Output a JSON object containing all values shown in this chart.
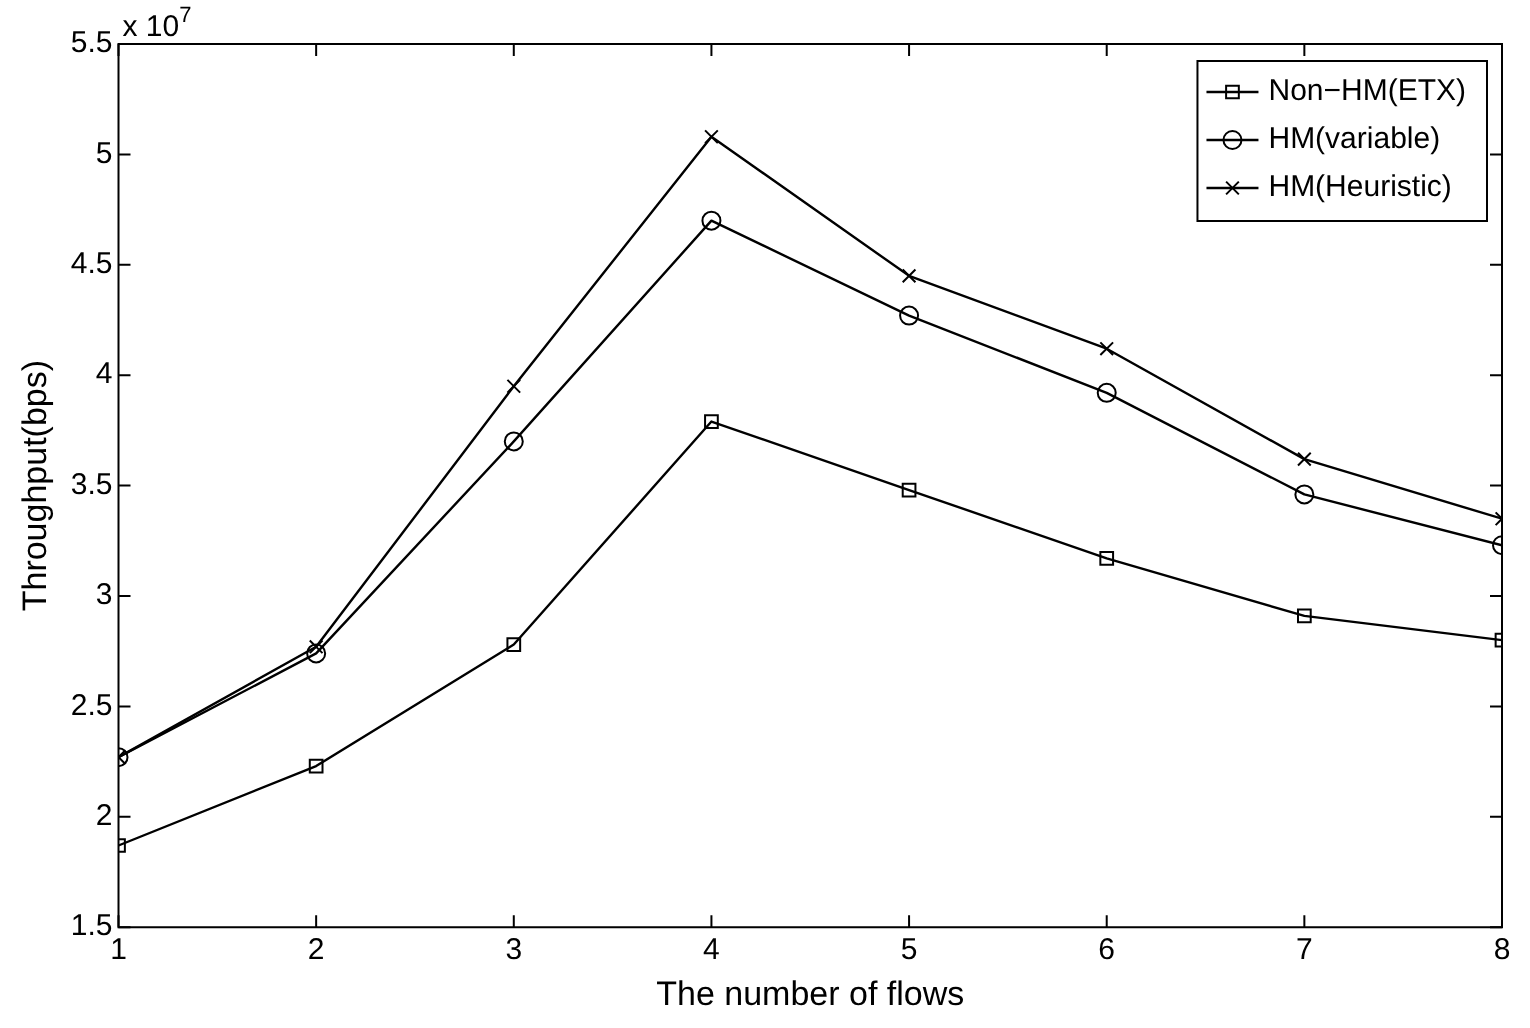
{
  "chart_data": {
    "type": "line",
    "xlabel": "The number of flows",
    "ylabel": "Throughput(bps)",
    "annotations": [
      "x 10$^{7}$"
    ],
    "x": [
      1,
      2,
      3,
      4,
      5,
      6,
      7,
      8
    ],
    "series": [
      {
        "name": "Non−HM(ETX)",
        "color": "#000000",
        "marker": "square",
        "values": [
          1.87,
          2.23,
          2.78,
          3.79,
          3.48,
          3.17,
          2.91,
          2.8
        ]
      },
      {
        "name": "HM(variable)",
        "color": "#000000",
        "marker": "circle",
        "values": [
          2.27,
          2.74,
          3.7,
          4.7,
          4.27,
          3.92,
          3.46,
          3.23
        ]
      },
      {
        "name": "HM(Heuristic)",
        "color": "#000000",
        "marker": "cross",
        "values": [
          2.27,
          2.77,
          3.95,
          5.08,
          4.45,
          4.12,
          3.62,
          3.35
        ]
      }
    ],
    "xlim": [
      1,
      8
    ],
    "xticks": [
      1,
      2,
      3,
      4,
      5,
      6,
      7,
      8
    ],
    "ylim": [
      1.5,
      5.5
    ],
    "yticks": [
      1.5,
      2,
      2.5,
      3,
      3.5,
      4,
      4.5,
      5,
      5.5
    ],
    "grid": false,
    "legend": "top right",
    "line_style": "solid"
  }
}
